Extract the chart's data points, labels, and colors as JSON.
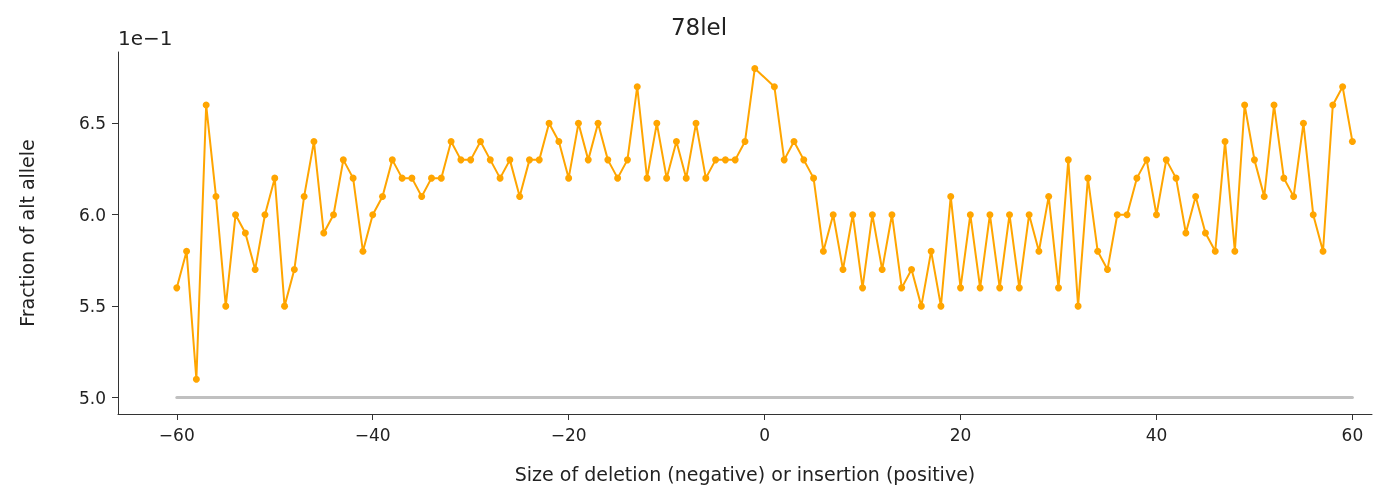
{
  "chart_data": {
    "type": "line",
    "title": "78lel",
    "xlabel": "Size of deletion (negative) or insertion (positive)",
    "ylabel": "Fraction of alt allele",
    "annotations": [
      "1e−1"
    ],
    "xlim": [
      -66,
      62
    ],
    "xticks": [
      -60,
      -40,
      -20,
      0,
      20,
      40,
      60
    ],
    "ylim": [
      4.91,
      6.89
    ],
    "yticks": [
      {
        "value": 5,
        "label": "5.0"
      },
      5.5,
      {
        "value": 6,
        "label": "6.0"
      },
      6.5
    ],
    "grid": false,
    "marker": "circle",
    "line_style": "solid",
    "series": [
      {
        "color": "#c0c0c0",
        "marker": "none",
        "x": [
          -60,
          60
        ],
        "values": [
          5,
          5
        ]
      },
      {
        "color": "#ffa500",
        "x": [
          -60,
          -59,
          -58,
          -57,
          -56,
          -55,
          -54,
          -53,
          -52,
          -51,
          -50,
          -49,
          -48,
          -47,
          -46,
          -45,
          -44,
          -43,
          -42,
          -41,
          -40,
          -39,
          -38,
          -37,
          -36,
          -35,
          -34,
          -33,
          -32,
          -31,
          -30,
          -29,
          -28,
          -27,
          -26,
          -25,
          -24,
          -23,
          -22,
          -21,
          -20,
          -19,
          -18,
          -17,
          -16,
          -15,
          -14,
          -13,
          -12,
          -11,
          -10,
          -9,
          -8,
          -7,
          -6,
          -5,
          -4,
          -3,
          -2,
          -1,
          1,
          2,
          3,
          4,
          5,
          6,
          7,
          8,
          9,
          10,
          11,
          12,
          13,
          14,
          15,
          16,
          17,
          18,
          19,
          20,
          21,
          22,
          23,
          24,
          25,
          26,
          27,
          28,
          29,
          30,
          31,
          32,
          33,
          34,
          35,
          36,
          37,
          38,
          39,
          40,
          41,
          42,
          43,
          44,
          45,
          46,
          47,
          48,
          49,
          50,
          51,
          52,
          53,
          54,
          55,
          56,
          57,
          58,
          59,
          60
        ],
        "values": [
          5.6,
          5.8,
          5.1,
          6.6,
          6.1,
          5.5,
          6.0,
          5.9,
          5.7,
          6.0,
          6.2,
          5.5,
          5.7,
          6.1,
          6.4,
          5.9,
          6.0,
          6.3,
          6.2,
          5.8,
          6.0,
          6.1,
          6.3,
          6.2,
          6.2,
          6.1,
          6.2,
          6.2,
          6.4,
          6.3,
          6.3,
          6.4,
          6.3,
          6.2,
          6.3,
          6.1,
          6.3,
          6.3,
          6.5,
          6.4,
          6.2,
          6.5,
          6.3,
          6.5,
          6.3,
          6.2,
          6.3,
          6.7,
          6.2,
          6.5,
          6.2,
          6.4,
          6.2,
          6.5,
          6.2,
          6.3,
          6.3,
          6.3,
          6.4,
          6.8,
          6.7,
          6.3,
          6.4,
          6.3,
          6.2,
          5.8,
          6.0,
          5.7,
          6.0,
          5.6,
          6.0,
          5.7,
          6.0,
          5.6,
          5.7,
          5.5,
          5.8,
          5.5,
          6.1,
          5.6,
          6.0,
          5.6,
          6.0,
          5.6,
          6.0,
          5.6,
          6.0,
          5.8,
          6.1,
          5.6,
          6.3,
          5.5,
          6.2,
          5.8,
          5.7,
          6.0,
          6.0,
          6.2,
          6.3,
          6.0,
          6.3,
          6.2,
          5.9,
          6.1,
          5.9,
          5.8,
          6.4,
          5.8,
          6.6,
          6.3,
          6.1,
          6.6,
          6.2,
          6.1,
          6.5,
          6.0,
          5.8,
          6.6,
          6.7,
          6.4
        ]
      }
    ]
  }
}
